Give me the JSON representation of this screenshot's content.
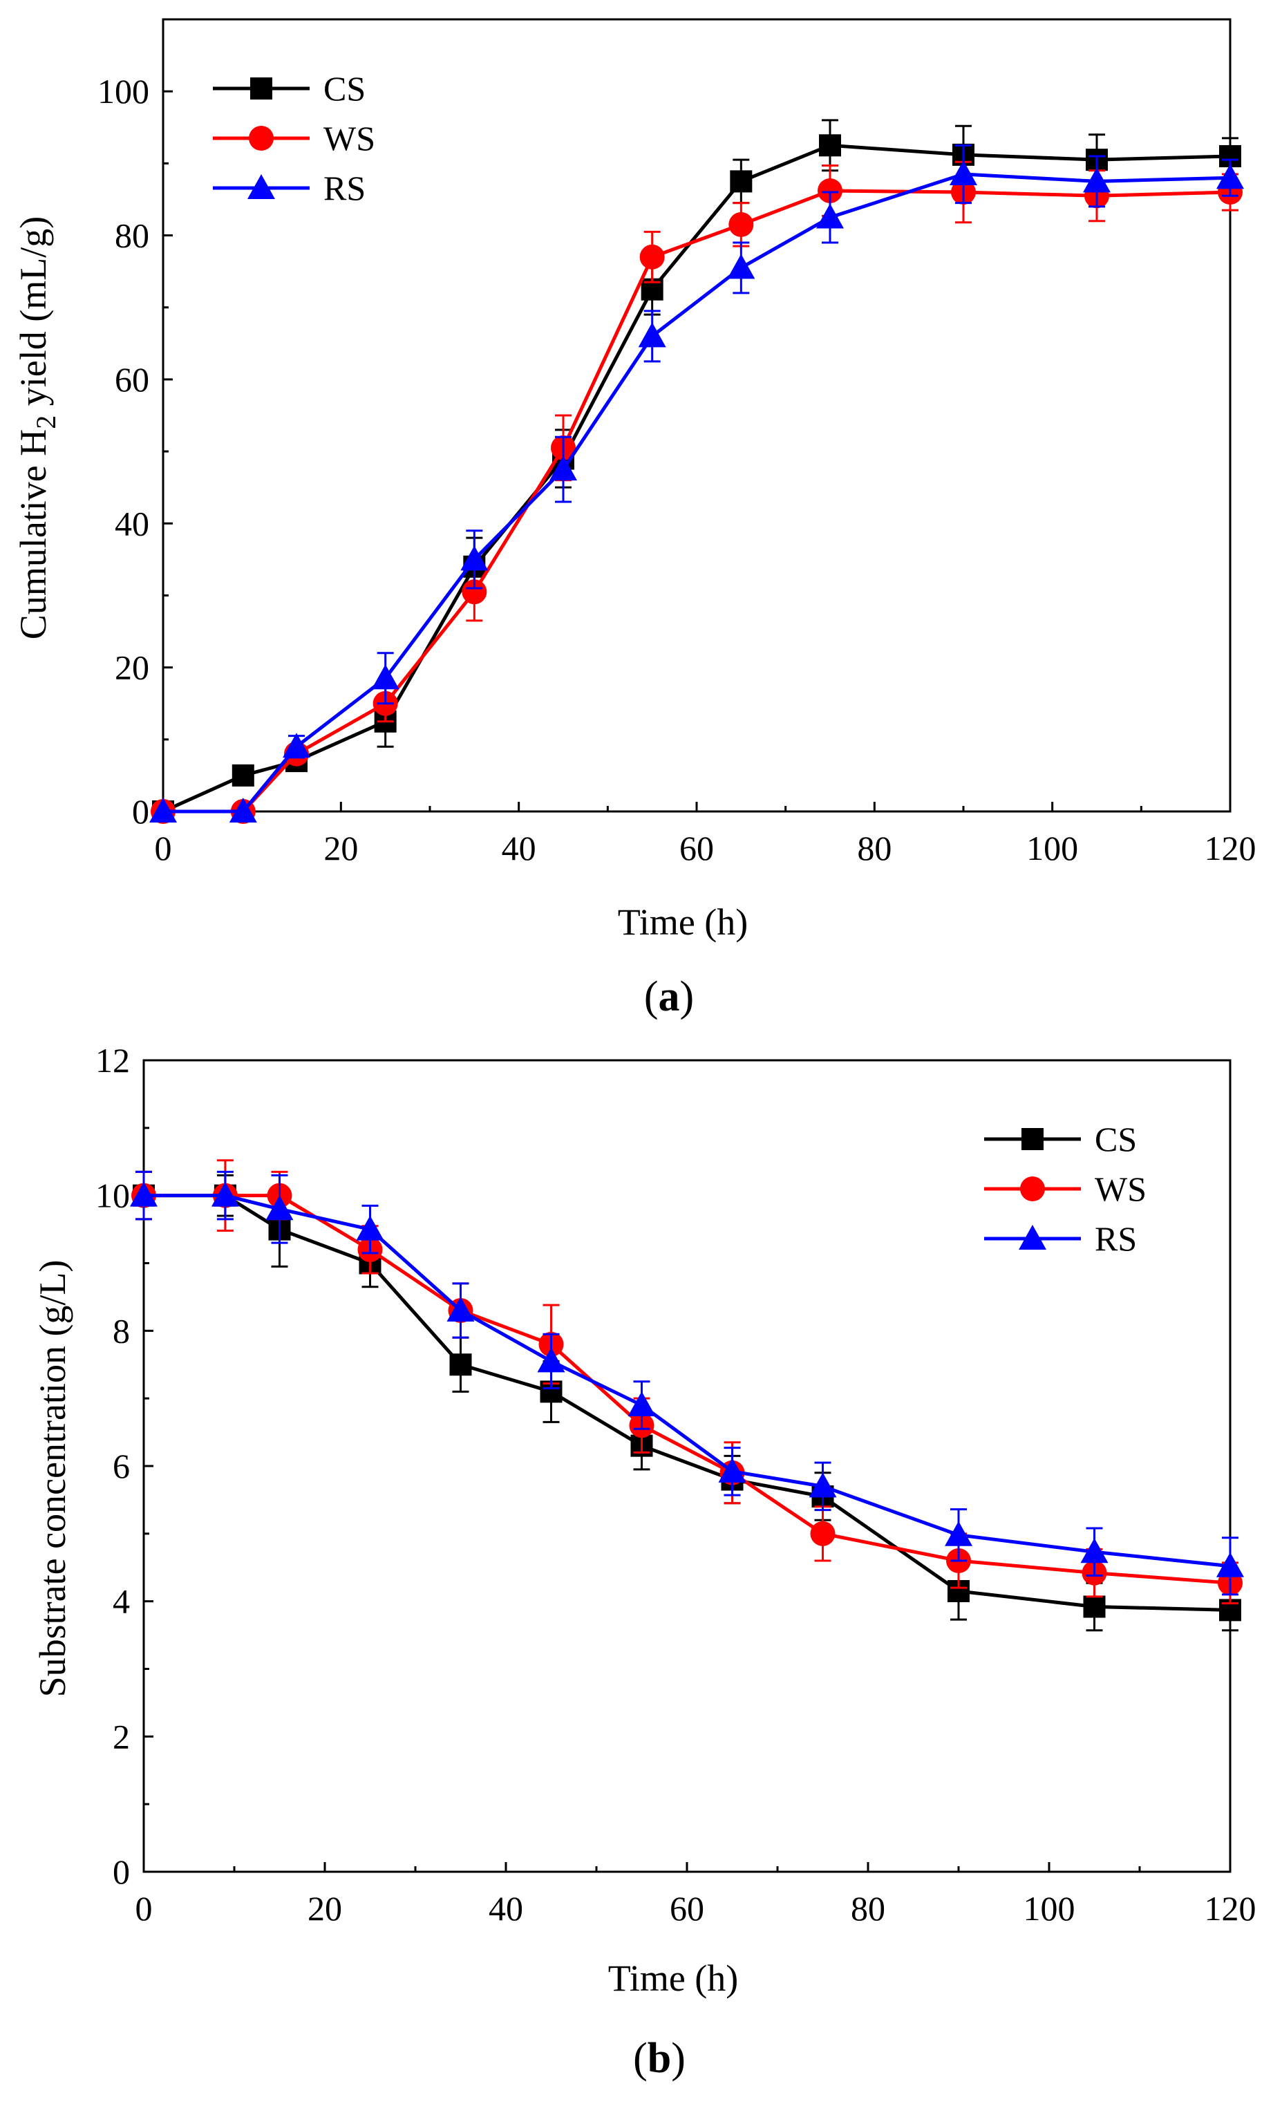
{
  "chart_data": [
    {
      "id": "a",
      "type": "line",
      "caption": "a",
      "xlabel": "Time (h)",
      "ylabel": {
        "prefix": "Cumulative H",
        "sub": "2",
        "suffix": " yield (mL/g)"
      },
      "xlim": [
        0,
        120
      ],
      "ylim": [
        0,
        110
      ],
      "xticks": [
        0,
        20,
        40,
        60,
        80,
        100,
        120
      ],
      "yticks": [
        0,
        20,
        40,
        60,
        80,
        100
      ],
      "legend_position": "top-left",
      "grid": false,
      "series": [
        {
          "name": "CS",
          "color": "#000000",
          "marker": "square",
          "x": [
            0,
            9,
            15,
            25,
            35,
            45,
            55,
            65,
            75,
            90,
            105,
            120
          ],
          "y": [
            0,
            5,
            7,
            12.5,
            34,
            49,
            72.5,
            87.5,
            92.5,
            91.2,
            90.5,
            91
          ],
          "err": [
            0,
            0,
            1,
            3.5,
            4,
            4,
            3.5,
            3,
            3.5,
            4,
            3.5,
            2.5
          ]
        },
        {
          "name": "WS",
          "color": "#ff0000",
          "marker": "circle",
          "x": [
            0,
            9,
            15,
            25,
            35,
            45,
            55,
            65,
            75,
            90,
            105,
            120
          ],
          "y": [
            0,
            0,
            8,
            15,
            30.5,
            50.5,
            77,
            81.5,
            86.2,
            86,
            85.5,
            86
          ],
          "err": [
            0,
            0,
            1,
            2.5,
            4,
            4.5,
            3.5,
            3,
            3.5,
            4.2,
            3.5,
            2.5
          ]
        },
        {
          "name": "RS",
          "color": "#0000ff",
          "marker": "triangle",
          "x": [
            0,
            9,
            15,
            25,
            35,
            45,
            55,
            65,
            75,
            90,
            105,
            120
          ],
          "y": [
            0,
            0,
            9,
            18.5,
            35,
            47.5,
            66,
            75.5,
            82.5,
            88.5,
            87.5,
            88
          ],
          "err": [
            0,
            0,
            1.5,
            3.5,
            4,
            4.5,
            3.5,
            3.5,
            3.5,
            4,
            3.5,
            2.5
          ]
        }
      ]
    },
    {
      "id": "b",
      "type": "line",
      "caption": "b",
      "xlabel": "Time (h)",
      "ylabel": {
        "prefix": "Substrate concentration (g/L)",
        "sub": "",
        "suffix": ""
      },
      "xlim": [
        0,
        120
      ],
      "ylim": [
        0,
        12
      ],
      "xticks": [
        0,
        20,
        40,
        60,
        80,
        100,
        120
      ],
      "yticks": [
        0,
        2,
        4,
        6,
        8,
        10,
        12
      ],
      "legend_position": "top-right",
      "grid": false,
      "series": [
        {
          "name": "CS",
          "color": "#000000",
          "marker": "square",
          "x": [
            0,
            9,
            15,
            25,
            35,
            45,
            55,
            65,
            75,
            90,
            105,
            120
          ],
          "y": [
            10,
            10,
            9.5,
            9,
            7.5,
            7.1,
            6.3,
            5.8,
            5.55,
            4.15,
            3.92,
            3.87
          ],
          "err": [
            0.35,
            0.3,
            0.55,
            0.35,
            0.4,
            0.45,
            0.35,
            0.35,
            0.35,
            0.42,
            0.35,
            0.3
          ]
        },
        {
          "name": "WS",
          "color": "#ff0000",
          "marker": "circle",
          "x": [
            0,
            9,
            15,
            25,
            35,
            45,
            55,
            65,
            75,
            90,
            105,
            120
          ],
          "y": [
            10,
            10,
            10,
            9.2,
            8.3,
            7.8,
            6.6,
            5.9,
            5.0,
            4.6,
            4.42,
            4.27
          ],
          "err": [
            0.35,
            0.52,
            0.35,
            0.35,
            0.4,
            0.58,
            0.4,
            0.45,
            0.4,
            0.4,
            0.35,
            0.3
          ]
        },
        {
          "name": "RS",
          "color": "#0000ff",
          "marker": "triangle",
          "x": [
            0,
            9,
            15,
            25,
            35,
            45,
            55,
            65,
            75,
            90,
            105,
            120
          ],
          "y": [
            10,
            10,
            9.8,
            9.5,
            8.3,
            7.55,
            6.9,
            5.92,
            5.7,
            4.98,
            4.73,
            4.52
          ],
          "err": [
            0.35,
            0.35,
            0.5,
            0.35,
            0.4,
            0.4,
            0.35,
            0.35,
            0.35,
            0.38,
            0.35,
            0.42
          ]
        }
      ]
    }
  ]
}
